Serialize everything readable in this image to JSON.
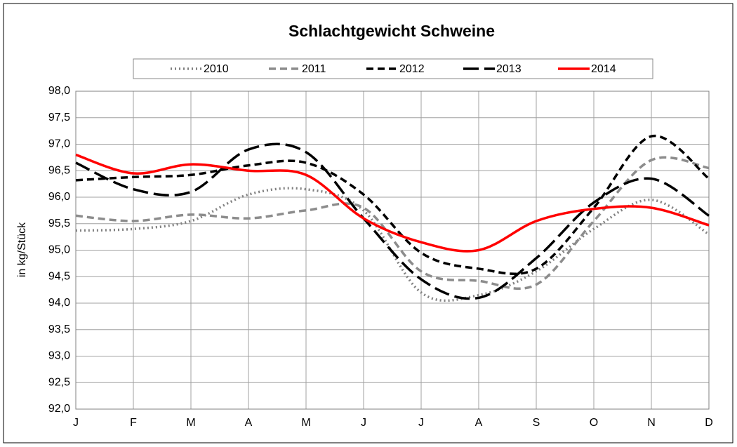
{
  "chart_data": {
    "type": "line",
    "title": "Schlachtgewicht Schweine",
    "y_label": "in kg/Stück",
    "categories": [
      "J",
      "F",
      "M",
      "A",
      "M",
      "J",
      "J",
      "A",
      "S",
      "O",
      "N",
      "D"
    ],
    "ylim": [
      92,
      98
    ],
    "yticks": [
      {
        "value": 92,
        "label": "92,0"
      },
      {
        "value": 92.5,
        "label": "92,5"
      },
      {
        "value": 93,
        "label": "93,0"
      },
      {
        "value": 93.5,
        "label": "93,5"
      },
      {
        "value": 94,
        "label": "94,0"
      },
      {
        "value": 94.5,
        "label": "94,5"
      },
      {
        "value": 95,
        "label": "95,0"
      },
      {
        "value": 95.5,
        "label": "95,5"
      },
      {
        "value": 96,
        "label": "96,0"
      },
      {
        "value": 96.5,
        "label": "96,5"
      },
      {
        "value": 97,
        "label": "97,0"
      },
      {
        "value": 97.5,
        "label": "97,5"
      },
      {
        "value": 98,
        "label": "98,0"
      }
    ],
    "grid": true,
    "smooth": true,
    "legend": "top",
    "series": [
      {
        "name": "2010",
        "color": "#808080",
        "dash": "2,4",
        "values": [
          95.37,
          95.4,
          95.55,
          96.05,
          96.15,
          95.75,
          94.2,
          94.15,
          94.6,
          95.4,
          95.95,
          95.3
        ]
      },
      {
        "name": "2011",
        "color": "#8c8c8c",
        "dash": "10,6",
        "values": [
          95.65,
          95.55,
          95.67,
          95.6,
          95.75,
          95.8,
          94.6,
          94.42,
          94.35,
          95.55,
          96.7,
          96.55
        ]
      },
      {
        "name": "2012",
        "color": "#000000",
        "dash": "10,6",
        "values": [
          96.32,
          96.38,
          96.42,
          96.6,
          96.65,
          96.05,
          94.95,
          94.65,
          94.65,
          95.8,
          97.15,
          96.35
        ]
      },
      {
        "name": "2013",
        "color": "#000000",
        "dash": "22,8",
        "values": [
          96.65,
          96.15,
          96.1,
          96.9,
          96.85,
          95.6,
          94.45,
          94.1,
          94.85,
          95.9,
          96.35,
          95.65
        ]
      },
      {
        "name": "2014",
        "color": "#ff0000",
        "dash": "",
        "values": [
          96.8,
          96.45,
          96.62,
          96.5,
          96.42,
          95.6,
          95.15,
          95.0,
          95.55,
          95.78,
          95.8,
          95.47
        ]
      }
    ]
  }
}
